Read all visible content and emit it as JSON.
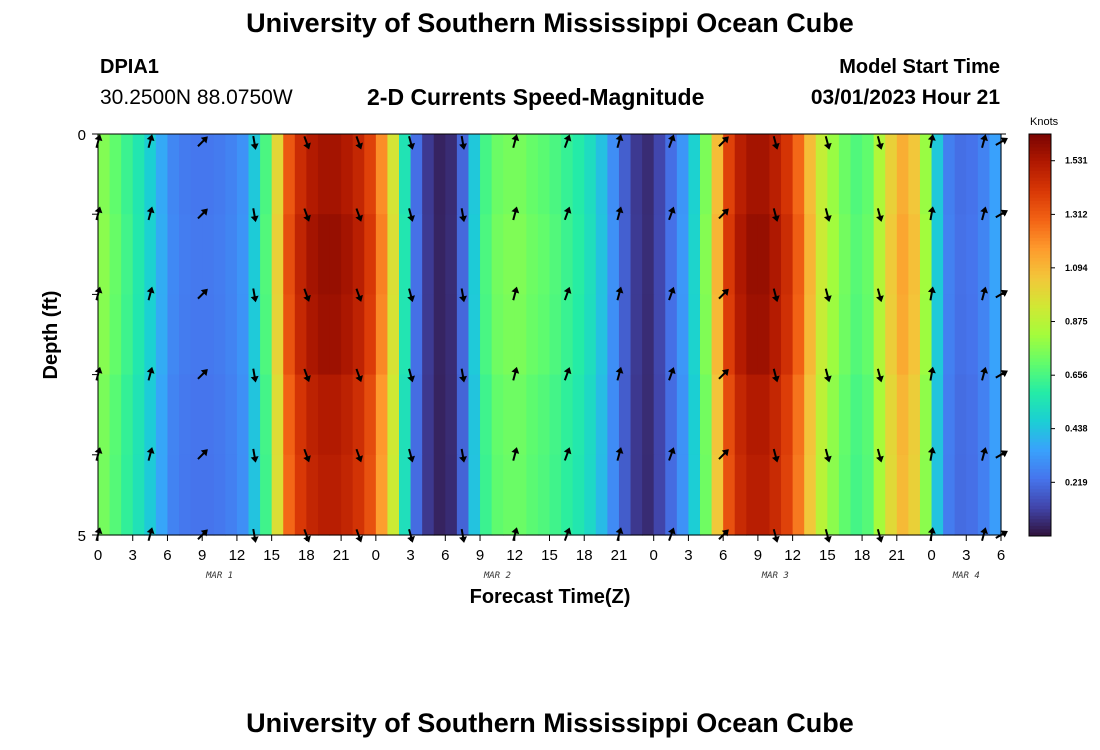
{
  "header": {
    "title": "University of Southern Mississippi Ocean Cube",
    "station": "DPIA1",
    "coordinates": "30.2500N  88.0750W",
    "subtitle": "2-D Currents Speed-Magnitude",
    "model_start_label": "Model Start Time",
    "model_start_value": "03/01/2023 Hour 21"
  },
  "footer": {
    "title": "University of Southern Mississippi Ocean Cube"
  },
  "chart_data": {
    "type": "heatmap",
    "title": "2-D Currents Speed-Magnitude",
    "xlabel": "Forecast Time(Z)",
    "ylabel": "Depth (ft)",
    "x_hours_range": [
      0,
      78
    ],
    "ylim": [
      0,
      5
    ],
    "y_ticks": [
      "0",
      "5"
    ],
    "x_tick_labels": [
      "0",
      "3",
      "6",
      "9",
      "12",
      "15",
      "18",
      "21",
      "0",
      "3",
      "6",
      "9",
      "12",
      "15",
      "18",
      "21",
      "0",
      "3",
      "6",
      "9",
      "12",
      "15",
      "18",
      "21",
      "0",
      "3",
      "6"
    ],
    "date_labels": [
      {
        "label": "MAR 1",
        "hour": 10.5
      },
      {
        "label": "MAR 2",
        "hour": 34.5
      },
      {
        "label": "MAR 3",
        "hour": 58.5
      },
      {
        "label": "MAR 4",
        "hour": 75
      }
    ],
    "colorbar": {
      "unit": "Knots",
      "ticks": [
        "1.531",
        "1.312",
        "1.094",
        "0.875",
        "0.656",
        "0.438",
        "0.219"
      ],
      "tick_values": [
        1.531,
        1.312,
        1.094,
        0.875,
        0.656,
        0.438,
        0.219
      ],
      "range": [
        0,
        1.64
      ],
      "colors": [
        "#30123b",
        "#4145ab",
        "#4675ed",
        "#39a2fc",
        "#1bcfd4",
        "#24eca6",
        "#61fc6c",
        "#a4fc3b",
        "#d1e834",
        "#f3c63a",
        "#fe9b2d",
        "#f36315",
        "#d93806",
        "#b11901",
        "#7a0402"
      ]
    },
    "depth_rows": [
      0,
      1,
      2,
      3,
      4,
      5
    ],
    "speed_hourly_knots": [
      0.76,
      0.7,
      0.63,
      0.56,
      0.47,
      0.37,
      0.28,
      0.25,
      0.24,
      0.24,
      0.25,
      0.27,
      0.31,
      0.45,
      0.66,
      1.0,
      1.32,
      1.45,
      1.52,
      1.55,
      1.55,
      1.52,
      1.47,
      1.38,
      1.2,
      0.95,
      0.55,
      0.22,
      0.09,
      0.04,
      0.06,
      0.2,
      0.45,
      0.65,
      0.72,
      0.74,
      0.74,
      0.71,
      0.69,
      0.66,
      0.62,
      0.58,
      0.52,
      0.43,
      0.3,
      0.18,
      0.09,
      0.06,
      0.12,
      0.22,
      0.32,
      0.48,
      0.75,
      1.08,
      1.38,
      1.5,
      1.55,
      1.55,
      1.5,
      1.42,
      1.28,
      1.08,
      0.9,
      0.8,
      0.72,
      0.67,
      0.7,
      0.85,
      1.02,
      1.12,
      1.05,
      0.8,
      0.45,
      0.26,
      0.22,
      0.23,
      0.27,
      0.35,
      0.45
    ],
    "arrow_hours": [
      0,
      4.5,
      9,
      13.5,
      18,
      22.5,
      27,
      31.5,
      36,
      40.5,
      45,
      49.5,
      54,
      58.5,
      63,
      67.5,
      72,
      76.5,
      78
    ],
    "arrow_angles_deg": [
      15,
      15,
      45,
      170,
      160,
      160,
      165,
      170,
      15,
      20,
      15,
      20,
      45,
      165,
      165,
      165,
      10,
      15,
      60
    ]
  }
}
